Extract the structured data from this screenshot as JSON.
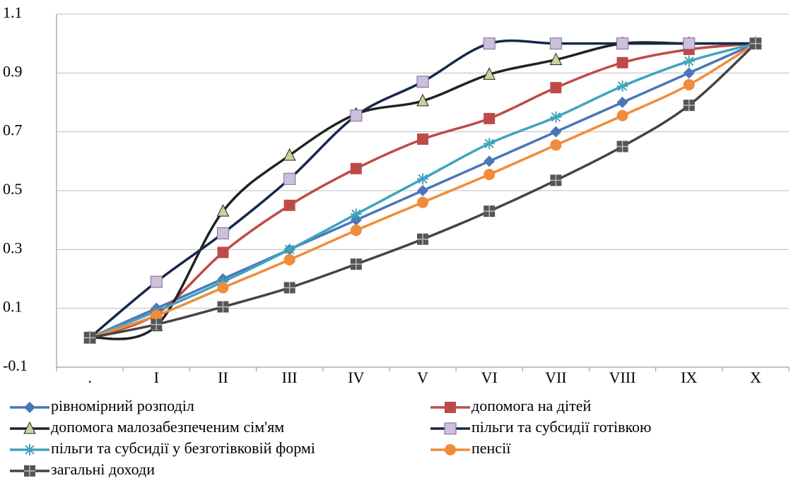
{
  "chart_data": {
    "type": "line",
    "smooth": true,
    "grid": true,
    "categories": [
      ".",
      "I",
      "II",
      "III",
      "IV",
      "V",
      "VI",
      "VII",
      "VIII",
      "IX",
      "X"
    ],
    "ylim": [
      -0.1,
      1.1
    ],
    "yticks": [
      -0.1,
      0.1,
      0.3,
      0.5,
      0.7,
      0.9,
      1.1
    ],
    "series": [
      {
        "name": "рівномірний розподіл",
        "color": "#4a76b8",
        "marker": "diamond",
        "marker_color": "#4a76b8",
        "values": [
          0,
          0.1,
          0.2,
          0.3,
          0.4,
          0.5,
          0.6,
          0.7,
          0.8,
          0.9,
          1.0
        ]
      },
      {
        "name": "допомога на дітей",
        "color": "#be4b48",
        "marker": "square",
        "marker_color": "#be4b48",
        "values": [
          0,
          0.08,
          0.29,
          0.45,
          0.575,
          0.675,
          0.745,
          0.85,
          0.935,
          0.98,
          1.0
        ]
      },
      {
        "name": "допомога малозабезпеченим сім'ям",
        "color": "#222222",
        "marker": "triangle",
        "marker_color": "#c3d69b",
        "values": [
          0,
          0.04,
          0.43,
          0.62,
          0.76,
          0.805,
          0.895,
          0.945,
          1.0,
          1.0,
          1.0
        ]
      },
      {
        "name": "пільги та субсидії готівкою",
        "color": "#15284a",
        "marker": "square",
        "marker_color": "#ccc0da",
        "values": [
          0,
          0.19,
          0.355,
          0.54,
          0.755,
          0.87,
          1.0,
          1.0,
          1.0,
          1.0,
          1.0
        ]
      },
      {
        "name": "пільги та субсидії у безготівковій формі",
        "color": "#3fa4bd",
        "marker": "asterisk",
        "marker_color": "#3fa4bd",
        "values": [
          0,
          0.09,
          0.19,
          0.3,
          0.42,
          0.54,
          0.66,
          0.75,
          0.855,
          0.94,
          1.0
        ]
      },
      {
        "name": "пенсії",
        "color": "#f08c3a",
        "marker": "circle",
        "marker_color": "#f08c3a",
        "values": [
          0,
          0.075,
          0.17,
          0.265,
          0.365,
          0.46,
          0.555,
          0.655,
          0.755,
          0.86,
          1.0
        ]
      },
      {
        "name": "загальні доходи",
        "color": "#444444",
        "marker": "cross-square",
        "marker_color": "#555555",
        "values": [
          0,
          0.045,
          0.105,
          0.17,
          0.25,
          0.335,
          0.43,
          0.535,
          0.65,
          0.79,
          1.0
        ]
      }
    ]
  }
}
